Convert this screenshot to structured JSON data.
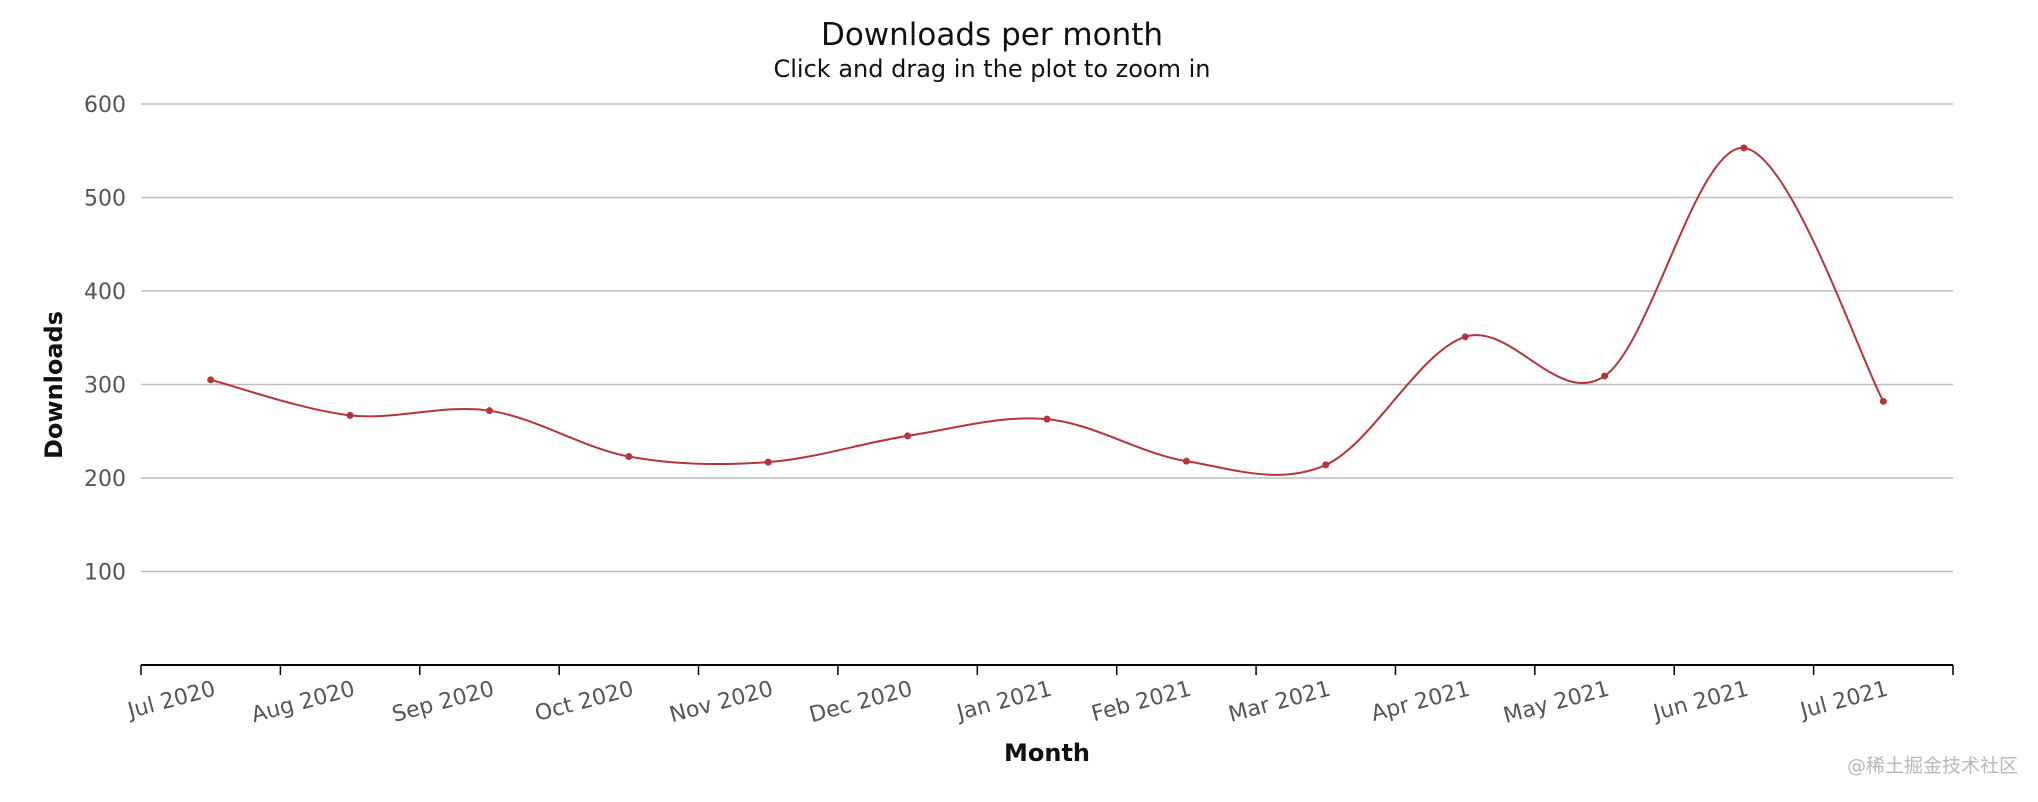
{
  "watermark": "@稀土掘金技术社区",
  "chart_data": {
    "type": "line",
    "title": "Downloads per month",
    "subtitle": "Click and drag in the plot to zoom in",
    "xlabel": "Month",
    "ylabel": "Downloads",
    "categories": [
      "Jul 2020",
      "Aug 2020",
      "Sep 2020",
      "Oct 2020",
      "Nov 2020",
      "Dec 2020",
      "Jan 2021",
      "Feb 2021",
      "Mar 2021",
      "Apr 2021",
      "May 2021",
      "Jun 2021",
      "Jul 2021"
    ],
    "series": [
      {
        "values": [
          305,
          267,
          272,
          223,
          217,
          245,
          263,
          218,
          214,
          351,
          309,
          553,
          282
        ],
        "color": "#b5343a"
      }
    ],
    "y_ticks": [
      100,
      200,
      300,
      400,
      500,
      600
    ],
    "ylim": [
      0,
      600
    ],
    "grid": true,
    "smooth": true,
    "legend": "none",
    "colors": {
      "line": "#b5343a",
      "grid": "#bdbdbd",
      "axis": "#000000"
    }
  }
}
